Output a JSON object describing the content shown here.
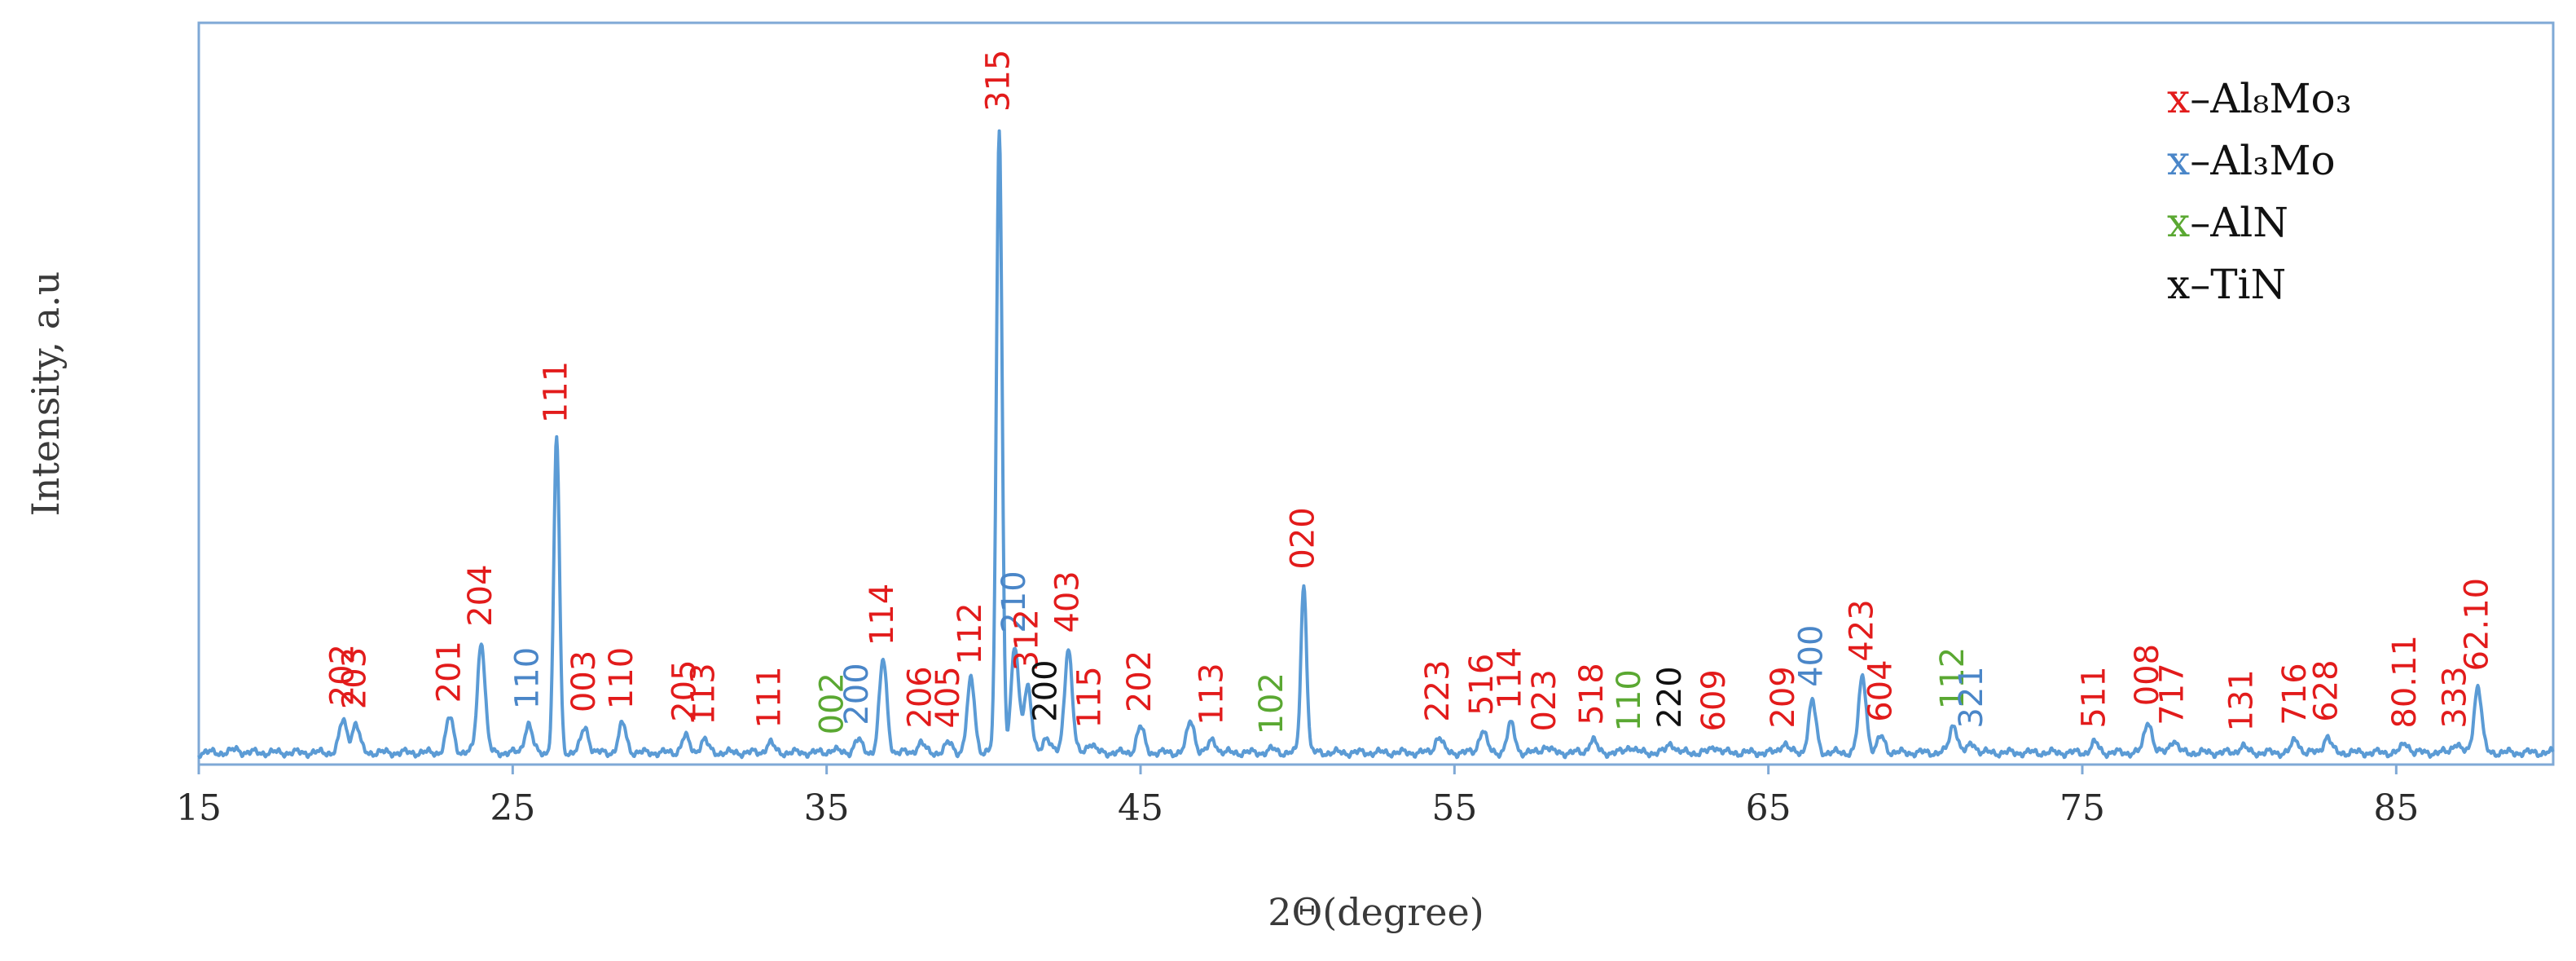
{
  "chart_data": {
    "type": "line",
    "xlabel": "2Θ(degree)",
    "ylabel": "Intensity, a.u",
    "xlim": [
      15,
      90
    ],
    "x_ticks": [
      15,
      25,
      35,
      45,
      55,
      65,
      75,
      85
    ],
    "grid": false,
    "legend_position": "top-right",
    "colors": {
      "Al8Mo3": "#e21b1b",
      "Al3Mo": "#4a86c8",
      "AlN": "#5aa832",
      "TiN": "#111111",
      "line": "#5b9bd5",
      "frame": "#7fa9d6"
    },
    "legend": [
      {
        "marker": "x",
        "phase": "Al8Mo3",
        "text": "–Al₈Mo₃"
      },
      {
        "marker": "x",
        "phase": "Al3Mo",
        "text": "–Al₃Mo"
      },
      {
        "marker": "x",
        "phase": "AlN",
        "text": "–AlN"
      },
      {
        "marker": "x",
        "phase": "TiN",
        "text": "–TiN"
      }
    ],
    "baseline": 1.5,
    "peaks": [
      {
        "x": 16.2,
        "y": 2.0
      },
      {
        "x": 19.6,
        "y": 6.5,
        "label": "202",
        "phase": "Al8Mo3"
      },
      {
        "x": 20.0,
        "y": 6.0,
        "label": "203",
        "phase": "Al8Mo3"
      },
      {
        "x": 23.0,
        "y": 7.0,
        "label": "201",
        "phase": "Al8Mo3"
      },
      {
        "x": 24.0,
        "y": 19.0,
        "label": "204",
        "phase": "Al8Mo3"
      },
      {
        "x": 25.5,
        "y": 6.0,
        "label": "110",
        "phase": "Al3Mo"
      },
      {
        "x": 26.4,
        "y": 51.0,
        "label": "111",
        "phase": "Al8Mo3"
      },
      {
        "x": 27.3,
        "y": 5.5,
        "label": "003",
        "phase": "Al8Mo3"
      },
      {
        "x": 28.5,
        "y": 6.0,
        "label": "110",
        "phase": "Al8Mo3"
      },
      {
        "x": 30.5,
        "y": 4.0,
        "label": "205",
        "phase": "Al8Mo3"
      },
      {
        "x": 31.1,
        "y": 3.5,
        "label": "113",
        "phase": "Al8Mo3"
      },
      {
        "x": 33.2,
        "y": 3.0,
        "label": "111",
        "phase": "Al8Mo3"
      },
      {
        "x": 35.2,
        "y": 2.0,
        "label": "002",
        "phase": "AlN"
      },
      {
        "x": 36.0,
        "y": 3.5,
        "label": "200",
        "phase": "Al3Mo"
      },
      {
        "x": 36.8,
        "y": 16.0,
        "label": "114",
        "phase": "Al8Mo3"
      },
      {
        "x": 38.0,
        "y": 3.0,
        "label": "206",
        "phase": "Al8Mo3"
      },
      {
        "x": 38.9,
        "y": 3.0,
        "label": "405",
        "phase": "Al8Mo3"
      },
      {
        "x": 39.6,
        "y": 13.0,
        "label": "112",
        "phase": "Al8Mo3"
      },
      {
        "x": 40.5,
        "y": 100.0,
        "label": "315",
        "phase": "Al8Mo3"
      },
      {
        "x": 41.0,
        "y": 18.0,
        "label": "210",
        "phase": "Al3Mo"
      },
      {
        "x": 41.4,
        "y": 12.0,
        "label": "312",
        "phase": "Al8Mo3"
      },
      {
        "x": 42.0,
        "y": 4.0,
        "label": "200",
        "phase": "TiN"
      },
      {
        "x": 42.7,
        "y": 18.0,
        "label": "403",
        "phase": "Al8Mo3"
      },
      {
        "x": 43.4,
        "y": 3.0,
        "label": "115",
        "phase": "Al8Mo3"
      },
      {
        "x": 45.0,
        "y": 5.5,
        "label": "202",
        "phase": "Al8Mo3"
      },
      {
        "x": 46.6,
        "y": 6.5
      },
      {
        "x": 47.3,
        "y": 3.5,
        "label": "113",
        "phase": "Al8Mo3"
      },
      {
        "x": 49.2,
        "y": 2.0,
        "label": "102",
        "phase": "AlN"
      },
      {
        "x": 50.2,
        "y": 28.0,
        "label": "020",
        "phase": "Al8Mo3"
      },
      {
        "x": 54.5,
        "y": 4.0,
        "label": "223",
        "phase": "Al8Mo3"
      },
      {
        "x": 55.9,
        "y": 5.0,
        "label": "516",
        "phase": "Al8Mo3"
      },
      {
        "x": 56.8,
        "y": 6.0,
        "label": "114",
        "phase": "Al8Mo3"
      },
      {
        "x": 57.9,
        "y": 2.5,
        "label": "023",
        "phase": "Al8Mo3"
      },
      {
        "x": 59.4,
        "y": 3.5,
        "label": "518",
        "phase": "Al8Mo3"
      },
      {
        "x": 60.6,
        "y": 2.5,
        "label": "110",
        "phase": "AlN"
      },
      {
        "x": 61.9,
        "y": 3.0,
        "label": "220",
        "phase": "TiN"
      },
      {
        "x": 63.3,
        "y": 2.5,
        "label": "609",
        "phase": "Al8Mo3"
      },
      {
        "x": 65.5,
        "y": 3.0,
        "label": "209",
        "phase": "Al8Mo3"
      },
      {
        "x": 66.4,
        "y": 9.5,
        "label": "400",
        "phase": "Al3Mo"
      },
      {
        "x": 68.0,
        "y": 13.5,
        "label": "423",
        "phase": "Al8Mo3"
      },
      {
        "x": 68.6,
        "y": 4.0,
        "label": "604",
        "phase": "Al8Mo3"
      },
      {
        "x": 70.9,
        "y": 6.0,
        "label": "112",
        "phase": "AlN"
      },
      {
        "x": 71.5,
        "y": 3.0,
        "label": "321",
        "phase": "Al3Mo"
      },
      {
        "x": 75.4,
        "y": 3.0,
        "label": "511",
        "phase": "Al8Mo3"
      },
      {
        "x": 77.1,
        "y": 6.5,
        "label": "008",
        "phase": "Al8Mo3"
      },
      {
        "x": 77.9,
        "y": 3.5,
        "label": "717",
        "phase": "Al8Mo3"
      },
      {
        "x": 80.1,
        "y": 2.5,
        "label": "131",
        "phase": "Al8Mo3"
      },
      {
        "x": 81.8,
        "y": 3.5,
        "label": "716",
        "phase": "Al8Mo3"
      },
      {
        "x": 82.8,
        "y": 4.0,
        "label": "628",
        "phase": "Al8Mo3"
      },
      {
        "x": 85.3,
        "y": 3.0,
        "label": "80.11",
        "phase": "Al8Mo3"
      },
      {
        "x": 86.9,
        "y": 3.0,
        "label": "333",
        "phase": "Al8Mo3"
      },
      {
        "x": 87.6,
        "y": 12.0,
        "label": "62.10",
        "phase": "Al8Mo3"
      }
    ]
  }
}
